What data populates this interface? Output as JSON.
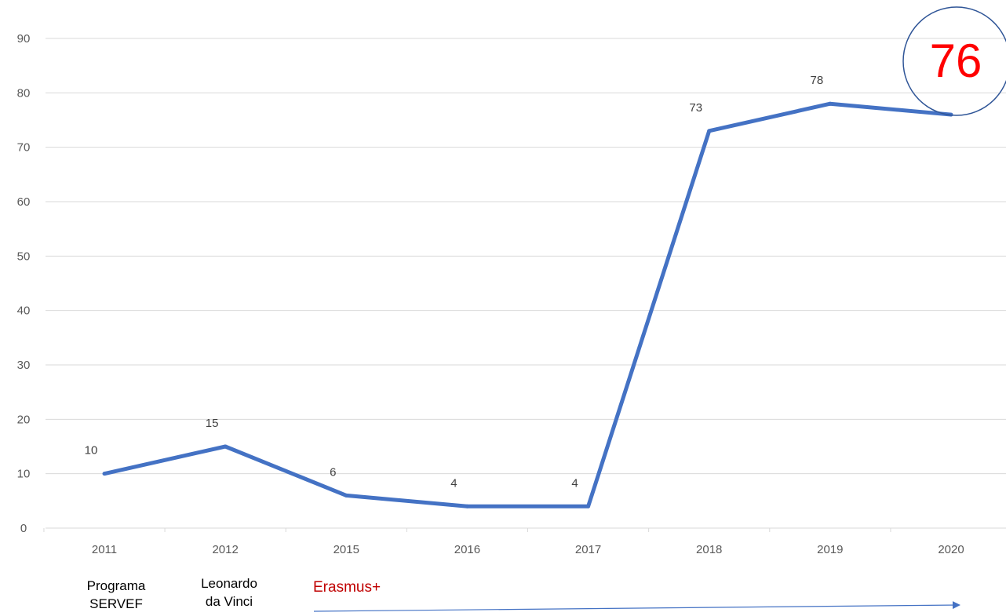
{
  "chart_data": {
    "type": "line",
    "title": "",
    "xlabel": "",
    "ylabel": "",
    "categories": [
      "2011",
      "2012",
      "2015",
      "2016",
      "2017",
      "2018",
      "2019",
      "2020"
    ],
    "series": [
      {
        "values": [
          10,
          15,
          6,
          4,
          4,
          73,
          78,
          76
        ],
        "color": "#4472c4"
      }
    ],
    "data_labels": [
      "10",
      "15",
      "6",
      "4",
      "4",
      "73",
      "78"
    ],
    "ylim": [
      0,
      90
    ],
    "yticks": [
      "0",
      "10",
      "20",
      "30",
      "40",
      "50",
      "60",
      "70",
      "80",
      "90"
    ],
    "grid": true,
    "legend": "none",
    "highlight": {
      "value": "76",
      "color": "#ff0000",
      "circle_color": "#2f5597"
    },
    "annotations": {
      "programa_line1": "Programa",
      "programa_line2": "SERVEF",
      "leonardo_line1": "Leonardo",
      "leonardo_line2": "da Vinci",
      "erasmus": "Erasmus+",
      "erasmus_color": "#c00000",
      "arrow_color": "#4472c4"
    }
  }
}
